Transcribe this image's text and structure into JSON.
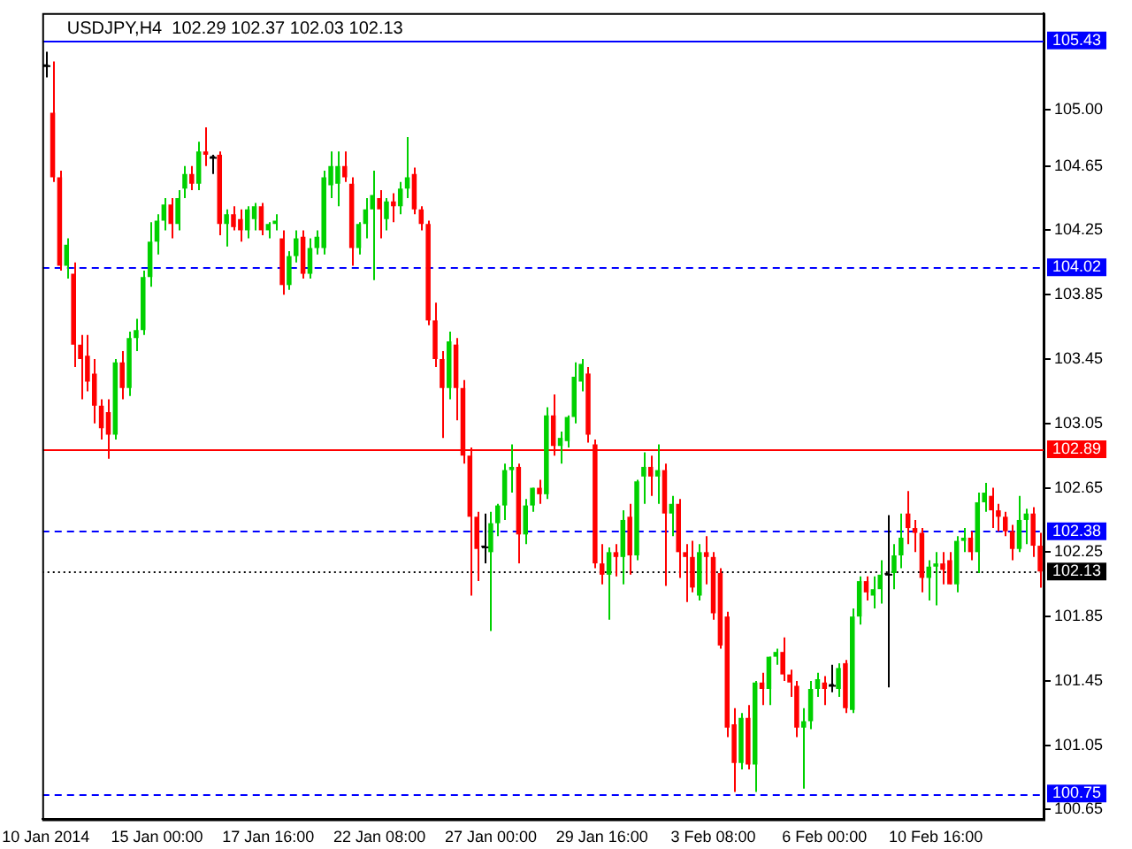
{
  "chart_data": {
    "type": "candlestick",
    "title": "USDJPY,H4  102.29 102.37 102.03 102.13",
    "categories": [
      "10 Jan 2014",
      null,
      null,
      null,
      null,
      null,
      null,
      null,
      null,
      null,
      null,
      null,
      null,
      null,
      null,
      null,
      "15 Jan 00:00",
      null,
      null,
      null,
      null,
      null,
      null,
      null,
      null,
      null,
      null,
      null,
      null,
      null,
      null,
      null,
      "17 Jan 16:00",
      null,
      null,
      null,
      null,
      null,
      null,
      null,
      null,
      null,
      null,
      null,
      null,
      null,
      null,
      null,
      "22 Jan 08:00",
      null,
      null,
      null,
      null,
      null,
      null,
      null,
      null,
      null,
      null,
      null,
      null,
      null,
      null,
      null,
      "27 Jan 00:00",
      null,
      null,
      null,
      null,
      null,
      null,
      null,
      null,
      null,
      null,
      null,
      null,
      null,
      null,
      null,
      "29 Jan 16:00",
      null,
      null,
      null,
      null,
      null,
      null,
      null,
      null,
      null,
      null,
      null,
      null,
      null,
      null,
      null,
      "3 Feb 08:00",
      null,
      null,
      null,
      null,
      null,
      null,
      null,
      null,
      null,
      null,
      null,
      null,
      null,
      null,
      null,
      "6 Feb 00:00",
      null,
      null,
      null,
      null,
      null,
      null,
      null,
      null,
      null,
      null,
      null,
      null,
      null,
      null,
      null,
      "10 Feb 16:00",
      null,
      null,
      null,
      null,
      null,
      null,
      null,
      null,
      null,
      null,
      null,
      null,
      null,
      null,
      null
    ],
    "ohlc": [
      [
        105.27,
        105.36,
        105.2,
        105.27
      ],
      [
        104.98,
        105.3,
        104.55,
        104.58
      ],
      [
        104.58,
        104.62,
        104.0,
        104.03
      ],
      [
        104.03,
        104.2,
        103.95,
        104.16
      ],
      [
        103.98,
        104.05,
        103.4,
        103.54
      ],
      [
        103.54,
        103.6,
        103.2,
        103.45
      ],
      [
        103.47,
        103.6,
        103.25,
        103.31
      ],
      [
        103.36,
        103.45,
        103.05,
        103.16
      ],
      [
        103.16,
        103.2,
        102.95,
        103.02
      ],
      [
        103.12,
        103.2,
        102.83,
        102.98
      ],
      [
        102.98,
        103.45,
        102.95,
        103.43
      ],
      [
        103.43,
        103.5,
        103.2,
        103.27
      ],
      [
        103.27,
        103.62,
        103.22,
        103.58
      ],
      [
        103.58,
        103.7,
        103.5,
        103.63
      ],
      [
        103.63,
        104.0,
        103.6,
        103.96
      ],
      [
        103.96,
        104.3,
        103.9,
        104.18
      ],
      [
        104.18,
        104.35,
        104.1,
        104.31
      ],
      [
        104.31,
        104.45,
        104.25,
        104.41
      ],
      [
        104.41,
        104.45,
        104.2,
        104.29
      ],
      [
        104.29,
        104.5,
        104.25,
        104.45
      ],
      [
        104.51,
        104.65,
        104.45,
        104.6
      ],
      [
        104.6,
        104.65,
        104.5,
        104.54
      ],
      [
        104.54,
        104.8,
        104.5,
        104.74
      ],
      [
        104.74,
        104.89,
        104.65,
        104.72
      ],
      [
        104.7,
        104.72,
        104.6,
        104.7
      ],
      [
        104.72,
        104.74,
        104.22,
        104.29
      ],
      [
        104.29,
        104.38,
        104.15,
        104.35
      ],
      [
        104.35,
        104.4,
        104.25,
        104.27
      ],
      [
        104.32,
        104.38,
        104.18,
        104.25
      ],
      [
        104.25,
        104.4,
        104.2,
        104.38
      ],
      [
        104.32,
        104.42,
        104.25,
        104.4
      ],
      [
        104.4,
        104.42,
        104.22,
        104.25
      ],
      [
        104.25,
        104.3,
        104.2,
        104.29
      ],
      [
        104.29,
        104.35,
        104.25,
        104.31
      ],
      [
        104.2,
        104.25,
        103.85,
        103.91
      ],
      [
        103.91,
        104.12,
        103.88,
        104.09
      ],
      [
        104.09,
        104.25,
        104.05,
        104.2
      ],
      [
        104.21,
        104.25,
        103.95,
        103.98
      ],
      [
        103.98,
        104.2,
        103.95,
        104.14
      ],
      [
        104.14,
        104.25,
        104.1,
        104.21
      ],
      [
        104.14,
        104.62,
        104.1,
        104.58
      ],
      [
        104.53,
        104.74,
        104.45,
        104.65
      ],
      [
        104.54,
        104.74,
        104.4,
        104.65
      ],
      [
        104.65,
        104.74,
        104.55,
        104.58
      ],
      [
        104.54,
        104.58,
        104.03,
        104.14
      ],
      [
        104.14,
        104.3,
        104.1,
        104.29
      ],
      [
        104.29,
        104.45,
        104.2,
        104.38
      ],
      [
        104.38,
        104.62,
        103.94,
        104.47
      ],
      [
        104.45,
        104.5,
        104.2,
        104.38
      ],
      [
        104.32,
        104.45,
        104.25,
        104.43
      ],
      [
        104.43,
        104.48,
        104.3,
        104.4
      ],
      [
        104.4,
        104.55,
        104.35,
        104.51
      ],
      [
        104.51,
        104.83,
        104.45,
        104.58
      ],
      [
        104.6,
        104.64,
        104.35,
        104.38
      ],
      [
        104.38,
        104.4,
        104.25,
        104.29
      ],
      [
        104.29,
        104.31,
        103.66,
        103.69
      ],
      [
        103.69,
        103.8,
        103.4,
        103.45
      ],
      [
        103.45,
        103.5,
        102.96,
        103.27
      ],
      [
        103.27,
        103.62,
        103.2,
        103.56
      ],
      [
        103.54,
        103.58,
        103.07,
        103.27
      ],
      [
        103.27,
        103.32,
        102.8,
        102.85
      ],
      [
        102.85,
        102.9,
        101.98,
        102.47
      ],
      [
        102.47,
        102.5,
        102.07,
        102.27
      ],
      [
        102.28,
        102.49,
        102.18,
        102.28
      ],
      [
        102.25,
        102.5,
        101.76,
        102.43
      ],
      [
        102.43,
        102.55,
        102.35,
        102.54
      ],
      [
        102.54,
        102.8,
        102.45,
        102.76
      ],
      [
        102.76,
        102.92,
        102.62,
        102.78
      ],
      [
        102.78,
        102.8,
        102.18,
        102.36
      ],
      [
        102.36,
        102.58,
        102.3,
        102.54
      ],
      [
        102.54,
        102.65,
        102.5,
        102.65
      ],
      [
        102.65,
        102.7,
        102.55,
        102.61
      ],
      [
        102.61,
        103.15,
        102.58,
        103.1
      ],
      [
        103.1,
        103.23,
        102.85,
        102.91
      ],
      [
        102.91,
        103.0,
        102.8,
        102.96
      ],
      [
        102.94,
        103.1,
        102.9,
        103.09
      ],
      [
        103.09,
        103.43,
        103.05,
        103.34
      ],
      [
        103.31,
        103.45,
        103.25,
        103.42
      ],
      [
        103.36,
        103.4,
        102.93,
        102.98
      ],
      [
        102.92,
        102.95,
        102.15,
        102.18
      ],
      [
        102.18,
        102.3,
        102.05,
        102.11
      ],
      [
        102.11,
        102.28,
        101.83,
        102.25
      ],
      [
        102.25,
        102.3,
        102.1,
        102.22
      ],
      [
        102.22,
        102.51,
        102.05,
        102.45
      ],
      [
        102.47,
        102.55,
        102.11,
        102.23
      ],
      [
        102.23,
        102.7,
        102.2,
        102.69
      ],
      [
        102.72,
        102.87,
        102.55,
        102.78
      ],
      [
        102.78,
        102.85,
        102.6,
        102.72
      ],
      [
        102.72,
        102.92,
        102.55,
        102.76
      ],
      [
        102.76,
        102.8,
        102.04,
        102.49
      ],
      [
        102.49,
        102.6,
        102.35,
        102.55
      ],
      [
        102.55,
        102.58,
        102.09,
        102.25
      ],
      [
        102.25,
        102.3,
        101.94,
        102.22
      ],
      [
        102.22,
        102.32,
        102.0,
        102.03
      ],
      [
        101.98,
        102.3,
        101.95,
        102.25
      ],
      [
        102.25,
        102.35,
        102.05,
        102.22
      ],
      [
        102.22,
        102.25,
        101.83,
        101.87
      ],
      [
        102.12,
        102.15,
        101.65,
        101.67
      ],
      [
        101.85,
        101.88,
        101.1,
        101.16
      ],
      [
        101.18,
        101.28,
        100.76,
        100.94
      ],
      [
        100.94,
        101.25,
        100.9,
        101.22
      ],
      [
        101.22,
        101.3,
        100.9,
        100.93
      ],
      [
        100.93,
        101.45,
        100.76,
        101.44
      ],
      [
        101.44,
        101.5,
        101.3,
        101.4
      ],
      [
        101.4,
        101.6,
        101.3,
        101.6
      ],
      [
        101.6,
        101.65,
        101.55,
        101.63
      ],
      [
        101.63,
        101.72,
        101.45,
        101.49
      ],
      [
        101.49,
        101.52,
        101.35,
        101.44
      ],
      [
        101.42,
        101.45,
        101.1,
        101.16
      ],
      [
        101.16,
        101.28,
        100.78,
        101.2
      ],
      [
        101.2,
        101.45,
        101.15,
        101.4
      ],
      [
        101.4,
        101.5,
        101.35,
        101.46
      ],
      [
        101.44,
        101.48,
        101.3,
        101.4
      ],
      [
        101.42,
        101.55,
        101.38,
        101.42
      ],
      [
        101.4,
        101.56,
        101.35,
        101.53
      ],
      [
        101.56,
        101.58,
        101.25,
        101.28
      ],
      [
        101.27,
        101.9,
        101.25,
        101.85
      ],
      [
        101.85,
        102.1,
        101.8,
        102.07
      ],
      [
        102.07,
        102.1,
        101.95,
        102.0
      ],
      [
        101.98,
        102.1,
        101.9,
        102.02
      ],
      [
        102.02,
        102.2,
        101.93,
        102.11
      ],
      [
        102.11,
        102.48,
        101.41,
        102.11
      ],
      [
        102.12,
        102.3,
        102.02,
        102.23
      ],
      [
        102.23,
        102.49,
        102.15,
        102.34
      ],
      [
        102.49,
        102.63,
        102.3,
        102.4
      ],
      [
        102.4,
        102.45,
        102.25,
        102.37
      ],
      [
        102.37,
        102.4,
        102.0,
        102.09
      ],
      [
        102.09,
        102.2,
        101.95,
        102.16
      ],
      [
        102.16,
        102.25,
        101.92,
        102.18
      ],
      [
        102.18,
        102.25,
        102.05,
        102.14
      ],
      [
        102.2,
        102.25,
        102.05,
        102.05
      ],
      [
        102.05,
        102.35,
        102.0,
        102.32
      ],
      [
        102.32,
        102.4,
        102.25,
        102.34
      ],
      [
        102.34,
        102.38,
        102.2,
        102.25
      ],
      [
        102.25,
        102.62,
        102.12,
        102.56
      ],
      [
        102.56,
        102.68,
        102.5,
        102.62
      ],
      [
        102.6,
        102.65,
        102.4,
        102.51
      ],
      [
        102.51,
        102.55,
        102.38,
        102.47
      ],
      [
        102.47,
        102.5,
        102.35,
        102.38
      ],
      [
        102.38,
        102.42,
        102.2,
        102.27
      ],
      [
        102.27,
        102.6,
        102.25,
        102.45
      ],
      [
        102.45,
        102.52,
        102.3,
        102.49
      ],
      [
        102.49,
        102.53,
        102.22,
        102.29
      ],
      [
        102.29,
        102.37,
        102.03,
        102.13
      ]
    ],
    "colors": [
      "#000000",
      "#ff0000",
      "#ff0000",
      "#00d000",
      "#ff0000",
      "#ff0000",
      "#ff0000",
      "#ff0000",
      "#ff0000",
      "#ff0000",
      "#00d000",
      "#ff0000",
      "#00d000",
      "#00d000",
      "#00d000",
      "#00d000",
      "#00d000",
      "#00d000",
      "#ff0000",
      "#00d000",
      "#00d000",
      "#ff0000",
      "#00d000",
      "#ff0000",
      "#000000",
      "#ff0000",
      "#00d000",
      "#ff0000",
      "#ff0000",
      "#00d000",
      "#00d000",
      "#ff0000",
      "#00d000",
      "#00d000",
      "#ff0000",
      "#00d000",
      "#00d000",
      "#ff0000",
      "#00d000",
      "#00d000",
      "#00d000",
      "#00d000",
      "#00d000",
      "#ff0000",
      "#ff0000",
      "#00d000",
      "#00d000",
      "#00d000",
      "#ff0000",
      "#00d000",
      "#ff0000",
      "#00d000",
      "#00d000",
      "#ff0000",
      "#ff0000",
      "#ff0000",
      "#ff0000",
      "#ff0000",
      "#00d000",
      "#ff0000",
      "#ff0000",
      "#ff0000",
      "#ff0000",
      "#000000",
      "#00d000",
      "#00d000",
      "#00d000",
      "#00d000",
      "#ff0000",
      "#00d000",
      "#00d000",
      "#ff0000",
      "#00d000",
      "#ff0000",
      "#00d000",
      "#00d000",
      "#00d000",
      "#00d000",
      "#ff0000",
      "#ff0000",
      "#ff0000",
      "#00d000",
      "#ff0000",
      "#00d000",
      "#ff0000",
      "#00d000",
      "#00d000",
      "#ff0000",
      "#00d000",
      "#ff0000",
      "#00d000",
      "#ff0000",
      "#ff0000",
      "#ff0000",
      "#00d000",
      "#ff0000",
      "#ff0000",
      "#ff0000",
      "#ff0000",
      "#ff0000",
      "#00d000",
      "#ff0000",
      "#00d000",
      "#ff0000",
      "#00d000",
      "#00d000",
      "#ff0000",
      "#ff0000",
      "#ff0000",
      "#00d000",
      "#00d000",
      "#00d000",
      "#ff0000",
      "#000000",
      "#00d000",
      "#ff0000",
      "#00d000",
      "#00d000",
      "#ff0000",
      "#00d000",
      "#00d000",
      "#000000",
      "#00d000",
      "#00d000",
      "#ff0000",
      "#ff0000",
      "#ff0000",
      "#00d000",
      "#00d000",
      "#ff0000",
      "#ff0000",
      "#00d000",
      "#00d000",
      "#ff0000",
      "#00d000",
      "#00d000",
      "#ff0000",
      "#ff0000",
      "#ff0000",
      "#ff0000",
      "#00d000",
      "#00d000",
      "#ff0000",
      "#ff0000"
    ],
    "ylim": [
      100.59,
      105.6
    ],
    "yticks": [
      {
        "value": 105,
        "label": "105.00"
      },
      104.65,
      104.25,
      103.85,
      103.45,
      103.05,
      102.65,
      102.25,
      101.85,
      101.45,
      101.05,
      100.65
    ],
    "ref_lines": [
      {
        "axis": "y",
        "value": 105.43,
        "label": "105.43",
        "color": "#0000ff",
        "line_style": "solid"
      },
      {
        "axis": "y",
        "value": 104.02,
        "label": "104.02",
        "color": "#0000ff",
        "line_style": "dashed"
      },
      {
        "axis": "y",
        "value": 102.89,
        "label": "102.89",
        "color": "#ff0000",
        "line_style": "solid"
      },
      {
        "axis": "y",
        "value": 102.38,
        "label": "102.38",
        "color": "#0000ff",
        "line_style": "dashed"
      },
      {
        "axis": "y",
        "value": 102.13,
        "label": "102.13",
        "color": "#000000",
        "line_style": "dotted"
      },
      {
        "axis": "y",
        "value": 100.75,
        "label": "100.75",
        "color": "#0000ff",
        "line_style": "dashed"
      }
    ],
    "grid": false
  }
}
